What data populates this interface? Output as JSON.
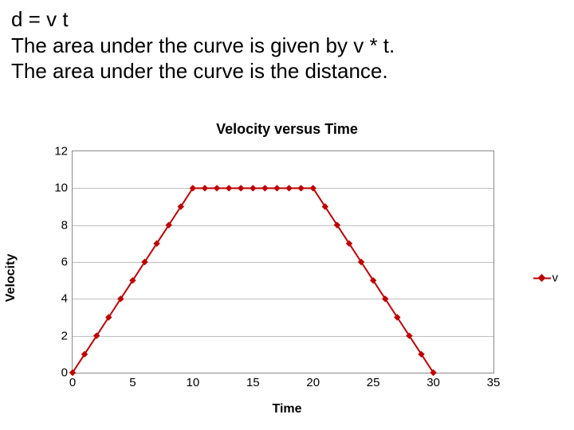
{
  "header": {
    "line1": "d = v t",
    "line2": "The area under the curve is given by v * t.",
    "line3": "The area under the curve is the distance."
  },
  "chart": {
    "type": "line",
    "title": "Velocity versus Time",
    "xlabel": "Time",
    "ylabel": "Velocity",
    "xlim": [
      0,
      35
    ],
    "ylim": [
      0,
      12
    ],
    "xticks": [
      0,
      5,
      10,
      15,
      20,
      25,
      30,
      35
    ],
    "yticks": [
      0,
      2,
      4,
      6,
      8,
      10,
      12
    ],
    "grid_color": "#bfbfbf",
    "border_color": "#888888",
    "background_color": "#ffffff",
    "series": {
      "name": "v",
      "color": "#c00000",
      "line_width": 2,
      "marker_style": "diamond",
      "marker_size": 7,
      "x": [
        0,
        1,
        2,
        3,
        4,
        5,
        6,
        7,
        8,
        9,
        10,
        11,
        12,
        13,
        14,
        15,
        16,
        17,
        18,
        19,
        20,
        21,
        22,
        23,
        24,
        25,
        26,
        27,
        28,
        29,
        30
      ],
      "y": [
        0,
        1,
        2,
        3,
        4,
        5,
        6,
        7,
        8,
        9,
        10,
        10,
        10,
        10,
        10,
        10,
        10,
        10,
        10,
        10,
        10,
        9,
        8,
        7,
        6,
        5,
        4,
        3,
        2,
        1,
        0
      ]
    },
    "title_fontsize": 18,
    "label_fontsize": 16,
    "tick_fontsize": 15,
    "legend_fontsize": 15
  }
}
